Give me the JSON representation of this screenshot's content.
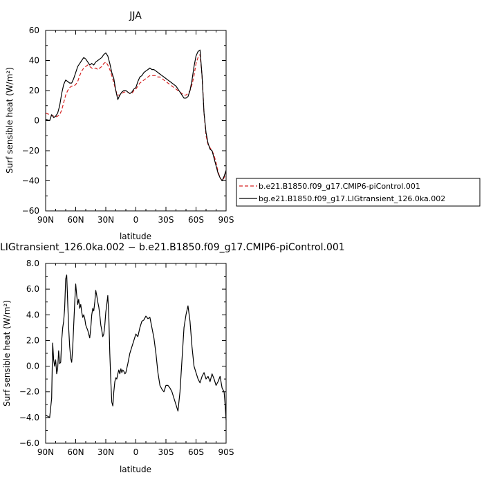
{
  "chart_data": [
    {
      "type": "line",
      "title": "JJA",
      "xlabel": "latitude",
      "ylabel": "Surf sensible heat (W/m²)",
      "xlim": [
        90,
        -90
      ],
      "ylim": [
        -60,
        60
      ],
      "x_ticks": [
        90,
        60,
        30,
        0,
        -30,
        -60,
        -90
      ],
      "x_tick_labels": [
        "90N",
        "60N",
        "30N",
        "0",
        "30S",
        "60S",
        "90S"
      ],
      "y_ticks": [
        -60,
        -40,
        -20,
        0,
        20,
        40,
        60
      ],
      "y_tick_labels": [
        "−60",
        "−40",
        "−20",
        "0",
        "20",
        "40",
        "60"
      ],
      "legend_position": "right",
      "series": [
        {
          "name": "b.e21.B1850.f09_g17.CMIP6-piControl.001",
          "color": "#d62020",
          "dash": "dashed",
          "x": [
            90,
            88,
            86,
            84,
            82,
            80,
            78,
            76,
            74,
            72,
            70,
            68,
            66,
            64,
            62,
            60,
            58,
            56,
            54,
            52,
            50,
            48,
            46,
            44,
            42,
            40,
            38,
            36,
            34,
            32,
            30,
            28,
            26,
            24,
            22,
            20,
            18,
            16,
            14,
            12,
            10,
            8,
            6,
            4,
            2,
            0,
            -2,
            -4,
            -6,
            -8,
            -10,
            -12,
            -14,
            -16,
            -18,
            -20,
            -22,
            -24,
            -26,
            -28,
            -30,
            -32,
            -34,
            -36,
            -38,
            -40,
            -42,
            -44,
            -46,
            -48,
            -50,
            -52,
            -54,
            -56,
            -58,
            -60,
            -62,
            -64,
            -66,
            -68,
            -70,
            -72,
            -74,
            -76,
            -78,
            -80,
            -82,
            -84,
            -86,
            -88,
            -90
          ],
          "values": [
            5,
            4.5,
            4,
            3.5,
            3,
            2.5,
            3,
            4,
            7,
            12,
            17,
            20,
            22,
            23,
            23,
            24,
            26,
            30,
            33,
            35,
            36,
            37,
            36,
            35,
            34.5,
            35,
            34,
            35,
            36,
            38,
            39,
            37,
            34,
            30,
            25,
            20,
            17,
            17,
            18,
            19,
            19,
            19,
            18,
            18,
            20,
            21,
            23,
            25,
            26,
            27,
            28,
            29,
            30,
            30,
            30,
            30,
            29,
            29,
            28,
            27,
            26,
            25,
            24,
            23,
            22,
            21,
            20,
            19,
            18,
            17,
            17,
            18,
            20,
            24,
            30,
            38,
            42,
            44,
            30,
            5,
            -10,
            -16,
            -18,
            -20,
            -23,
            -28,
            -34,
            -38,
            -40,
            -38,
            -35
          ]
        },
        {
          "name": "bg.e21.B1850.f09_g17.LIGtransient_126.0ka.002",
          "color": "#000000",
          "dash": "solid",
          "x": [
            90,
            88,
            86,
            84,
            82,
            80,
            78,
            76,
            74,
            72,
            70,
            68,
            66,
            64,
            62,
            60,
            58,
            56,
            54,
            52,
            50,
            48,
            46,
            44,
            42,
            40,
            38,
            36,
            34,
            32,
            30,
            28,
            26,
            24,
            22,
            20,
            18,
            16,
            14,
            12,
            10,
            8,
            6,
            4,
            2,
            0,
            -2,
            -4,
            -6,
            -8,
            -10,
            -12,
            -14,
            -16,
            -18,
            -20,
            -22,
            -24,
            -26,
            -28,
            -30,
            -32,
            -34,
            -36,
            -38,
            -40,
            -42,
            -44,
            -46,
            -48,
            -50,
            -52,
            -54,
            -56,
            -58,
            -60,
            -62,
            -64,
            -66,
            -68,
            -70,
            -72,
            -74,
            -76,
            -78,
            -80,
            -82,
            -84,
            -86,
            -88,
            -90
          ],
          "values": [
            1,
            0.5,
            0,
            4,
            2,
            3,
            5,
            10,
            18,
            24,
            27,
            26,
            25,
            25,
            28,
            32,
            36,
            38,
            40,
            42,
            41,
            39,
            37,
            38,
            37,
            39,
            40,
            41,
            42,
            44,
            45,
            43,
            38,
            32,
            28,
            20,
            14,
            17,
            19,
            20,
            20,
            19,
            18,
            19,
            21,
            22,
            26,
            29,
            30,
            32,
            33,
            34,
            35,
            34,
            34,
            33,
            32,
            31,
            30,
            29,
            28,
            27,
            26,
            25,
            24,
            23,
            21,
            19,
            17,
            15,
            15,
            16,
            20,
            27,
            36,
            43,
            46,
            47,
            30,
            5,
            -8,
            -15,
            -19,
            -20,
            -25,
            -30,
            -35,
            -38,
            -40,
            -37,
            -33
          ]
        }
      ]
    },
    {
      "type": "line",
      "title": "LIGtransient_126.0ka.002 − b.e21.B1850.f09_g17.CMIP6-piControl.001",
      "xlabel": "latitude",
      "ylabel": "Surf sensible heat (W/m²)",
      "xlim": [
        90,
        -90
      ],
      "ylim": [
        -6,
        8
      ],
      "x_ticks": [
        90,
        60,
        30,
        0,
        -30,
        -60,
        -90
      ],
      "x_tick_labels": [
        "90N",
        "60N",
        "30N",
        "0",
        "30S",
        "60S",
        "90S"
      ],
      "y_ticks": [
        -6,
        -4,
        -2,
        0,
        2,
        4,
        6,
        8
      ],
      "y_tick_labels": [
        "−6.0",
        "−4.0",
        "−2.0",
        "0.0",
        "2.0",
        "4.0",
        "6.0",
        "8.0"
      ],
      "series": [
        {
          "color": "#000000",
          "dash": "solid",
          "x": [
            90,
            88,
            86,
            84,
            83,
            82,
            81,
            80,
            79,
            78,
            77,
            76,
            75,
            74,
            73,
            72,
            71,
            70,
            69,
            68,
            67,
            66,
            65,
            64,
            63,
            62,
            61,
            60,
            59,
            58,
            57,
            56,
            55,
            54,
            53,
            52,
            51,
            50,
            49,
            48,
            47,
            46,
            45,
            44,
            43,
            42,
            41,
            40,
            39,
            38,
            37,
            36,
            35,
            34,
            33,
            32,
            31,
            30,
            29,
            28,
            27,
            26,
            25,
            24,
            23,
            22,
            21,
            20,
            19,
            18,
            17,
            16,
            15,
            14,
            13,
            12,
            11,
            10,
            8,
            6,
            4,
            2,
            0,
            -2,
            -4,
            -6,
            -8,
            -10,
            -12,
            -14,
            -16,
            -18,
            -20,
            -22,
            -24,
            -26,
            -28,
            -30,
            -32,
            -34,
            -36,
            -38,
            -40,
            -42,
            -44,
            -46,
            -48,
            -50,
            -52,
            -54,
            -56,
            -58,
            -60,
            -62,
            -64,
            -66,
            -68,
            -70,
            -72,
            -74,
            -76,
            -78,
            -80,
            -82,
            -84,
            -86,
            -88,
            -89,
            -90
          ],
          "values": [
            -3.8,
            -3.9,
            -4.0,
            -2.5,
            1.8,
            0.5,
            0.0,
            0.5,
            -0.6,
            -0.2,
            1.2,
            0.2,
            0.3,
            2.0,
            3.0,
            3.5,
            4.5,
            6.8,
            7.1,
            5.0,
            3.0,
            1.5,
            0.6,
            0.3,
            1.5,
            3.2,
            5.0,
            6.4,
            5.5,
            4.8,
            5.2,
            4.5,
            4.8,
            4.2,
            3.8,
            4.0,
            3.7,
            3.2,
            3.0,
            2.8,
            2.5,
            2.2,
            3.0,
            4.0,
            4.5,
            4.3,
            5.0,
            5.9,
            5.5,
            5.0,
            4.6,
            4.0,
            3.2,
            2.8,
            2.3,
            2.5,
            3.2,
            4.2,
            4.8,
            5.5,
            4.0,
            1.0,
            -1.2,
            -2.8,
            -3.1,
            -2.0,
            -1.2,
            -0.9,
            -1.0,
            -0.6,
            -0.3,
            -0.6,
            -0.2,
            -0.5,
            -0.3,
            -0.4,
            -0.6,
            -0.5,
            0.2,
            1.0,
            1.5,
            2.0,
            2.5,
            2.3,
            3.0,
            3.5,
            3.6,
            3.9,
            3.7,
            3.8,
            3.0,
            2.2,
            1.0,
            -0.5,
            -1.5,
            -1.8,
            -2.0,
            -1.5,
            -1.5,
            -1.7,
            -2.0,
            -2.5,
            -3.0,
            -3.5,
            -2.0,
            0.5,
            3.0,
            4.0,
            4.7,
            3.5,
            1.5,
            0.0,
            -0.5,
            -1.0,
            -1.3,
            -0.8,
            -0.5,
            -1.0,
            -0.8,
            -1.2,
            -0.6,
            -1.0,
            -1.5,
            -1.2,
            -0.8,
            -1.7,
            -2.0,
            -3.0,
            -4.2
          ]
        }
      ]
    }
  ]
}
